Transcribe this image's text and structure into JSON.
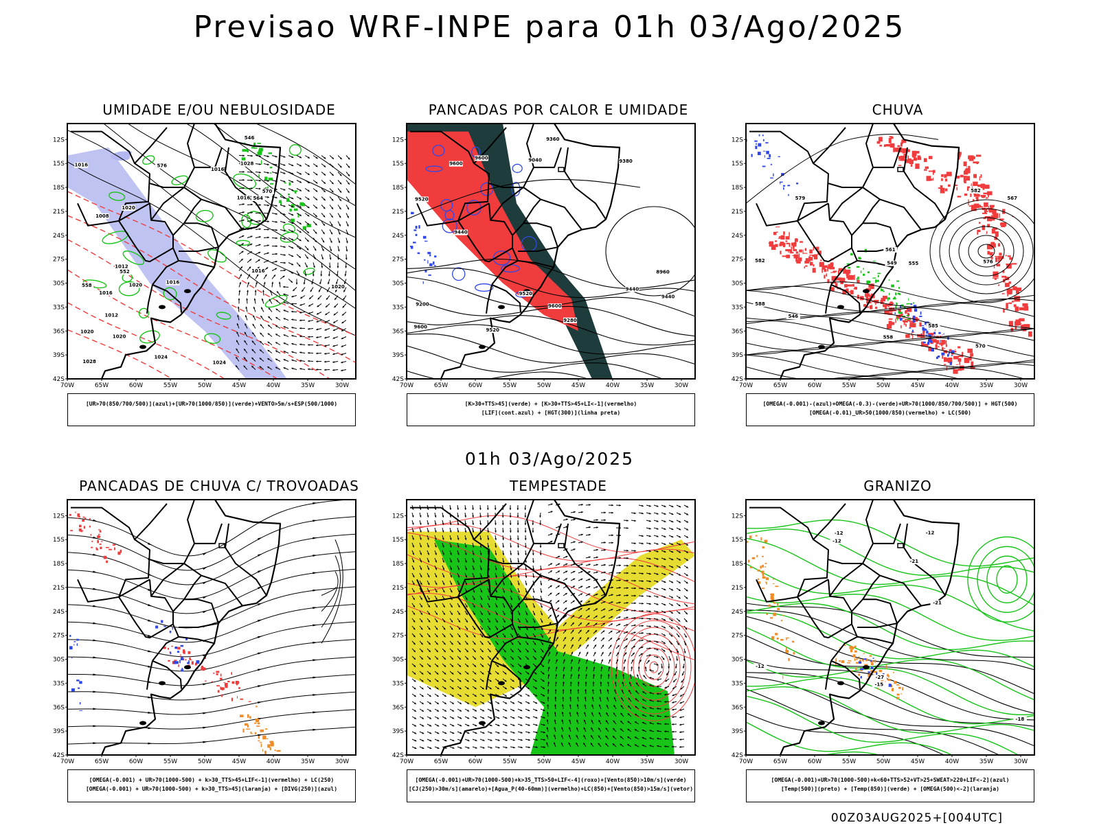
{
  "title": "Previsao WRF-INPE  para 01h 03/Ago/2025",
  "mid_title": "01h 03/Ago/2025",
  "footer": "00Z03AUG2025+[004UTC]",
  "lat_labels": [
    "12S",
    "15S",
    "18S",
    "21S",
    "24S",
    "27S",
    "30S",
    "33S",
    "36S",
    "39S",
    "42S"
  ],
  "lon_labels": [
    "70W",
    "65W",
    "60W",
    "55W",
    "50W",
    "45W",
    "40W",
    "35W",
    "30W"
  ],
  "colors": {
    "red": "#f03c3c",
    "green": "#18c418",
    "blue": "#3048e8",
    "lavender": "#b4b8f0",
    "dark_teal": "#1e3c3c",
    "yellow": "#e6dc32",
    "orange": "#f08c28"
  },
  "panels": [
    {
      "title": "UMIDADE E/OU NEBULOSIDADE",
      "legend": [
        "[UR>70(850/700/500)](azul)+[UR>70(1000/850)](verde)+VENTO>5m/s+ESP(500/1000)"
      ],
      "labels": [
        "1016",
        "1020",
        "1020",
        "1016",
        "1024",
        "1024",
        "1020",
        "1012",
        "1016",
        "1016",
        "1020",
        "1016",
        "1012",
        "1008",
        "1028",
        "1016",
        "1020",
        "564",
        "570",
        "576",
        "558",
        "546",
        "552",
        "1028"
      ]
    },
    {
      "title": "PANCADAS POR CALOR E UMIDADE",
      "legend": [
        "[K>30+TTS>45](verde) + [K>30+TTS>45+LI<-1](vermelho)",
        "[LIF](cont.azul) + [HGT(300)](linha preta)"
      ],
      "labels": [
        "9600",
        "9520",
        "9440",
        "9600",
        "9600",
        "9600",
        "9380",
        "9440",
        "9520",
        "9360",
        "9280",
        "9200",
        "9440",
        "9520",
        "9040",
        "8960"
      ]
    },
    {
      "title": "CHUVA",
      "legend": [
        "[OMEGA(-0.001)-(azul)+OMEGA(-0.3)-(verde)+UR>70(1000/850/700/500)] + HGT(500)",
        "[OMEGA(-0.01)_UR>50(1000/850)(vermelho) + LC(500)"
      ],
      "labels": [
        "582",
        "582",
        "576",
        "570",
        "567",
        "561",
        "555",
        "549",
        "546",
        "558",
        "588",
        "585",
        "579"
      ]
    },
    {
      "title": "PANCADAS DE CHUVA C/ TROVOADAS",
      "legend": [
        "[OMEGA(-0.001) + UR>70(1000-500) + k>30_TTS>45+LIF<-1](vermelho) + LC(250)",
        "[OMEGA(-0.001) + UR>70(1000-500) + k>30_TTS>45](laranja) + [DIVG(250)](azul)"
      ],
      "labels": []
    },
    {
      "title": "TEMPESTADE",
      "legend": [
        "[OMEGA(-0.001)+UR>70(1000-500)+k>35_TTS>50+LIF<-4](roxo)+[Vento(850)>10m/s](verde)",
        "[CJ(250)>30m/s](amarelo)+[Agua_P(40-60mm)](vermelho)+LC(850)+[Vento(850)>15m/s](vetor)"
      ],
      "labels": []
    },
    {
      "title": "GRANIZO",
      "legend": [
        "[OMEGA(-0.001)+UR>70(1000-500)+k<60+TTS>52+VT>25+SWEAT>220+LIF<-2](azul)",
        "[Temp(500)](preto) + [Temp(850)](verde) + [OMEGA(500)<-2](laranja)"
      ],
      "labels": [
        "-12",
        "-12",
        "-12",
        "-21",
        "-27",
        "-15",
        "-18",
        "-21",
        "-12"
      ]
    }
  ]
}
